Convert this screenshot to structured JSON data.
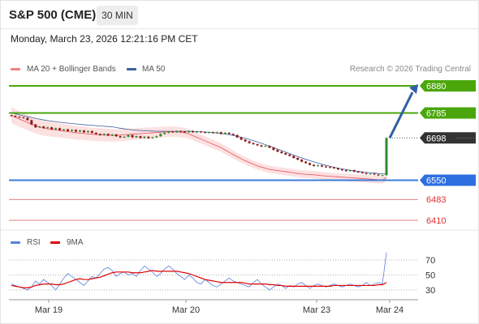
{
  "header": {
    "symbol": "S&P 500 (CME)",
    "timeframe": "30 MIN"
  },
  "datetime": "Monday, March 23, 2026 12:21:16 PM CET",
  "legend": {
    "items": [
      {
        "label": "MA 20 + Bollinger Bands",
        "color": "#f08080"
      },
      {
        "label": "MA 50",
        "color": "#3c5f9c"
      }
    ],
    "copyright": "Research © 2026 Trading Central"
  },
  "rsi_legend": {
    "items": [
      {
        "label": "RSI",
        "color": "#5b7fdb"
      },
      {
        "label": "9MA",
        "color": "#e00000"
      }
    ]
  },
  "chart_data": {
    "type": "candlestick",
    "x_labels": [
      "Mar 19",
      "Mar 20",
      "Mar 23",
      "Mar 24"
    ],
    "y_range": [
      6380,
      6900
    ],
    "levels": [
      {
        "value": 6880,
        "label": "6880",
        "color": "#4aa60a",
        "style": "solid",
        "tag_color": "#4aa60a"
      },
      {
        "value": 6785,
        "label": "6785",
        "color": "#4aa60a",
        "style": "solid",
        "tag_color": "#4aa60a"
      },
      {
        "value": 6698,
        "label": "6698",
        "color": "#333333",
        "style": "dotted",
        "tag_color": "#333333"
      },
      {
        "value": 6550,
        "label": "6550",
        "color": "#3c7ddb",
        "style": "solid",
        "tag_color": "#2d6fe0"
      },
      {
        "value": 6483,
        "label": "6483",
        "color": "#e05050",
        "style": "thin",
        "tag_color": null
      },
      {
        "value": 6410,
        "label": "6410",
        "color": "#e05050",
        "style": "thin",
        "tag_color": null
      }
    ],
    "price_series": [
      6775,
      6772,
      6770,
      6768,
      6760,
      6745,
      6735,
      6738,
      6733,
      6735,
      6728,
      6732,
      6725,
      6728,
      6722,
      6726,
      6720,
      6724,
      6718,
      6722,
      6716,
      6712,
      6708,
      6712,
      6706,
      6710,
      6704,
      6700,
      6702,
      6708,
      6700,
      6704,
      6698,
      6702,
      6697,
      6700,
      6704,
      6712,
      6716,
      6720,
      6718,
      6722,
      6720,
      6718,
      6722,
      6718,
      6720,
      6718,
      6716,
      6718,
      6715,
      6718,
      6712,
      6716,
      6712,
      6708,
      6700,
      6692,
      6686,
      6680,
      6676,
      6672,
      6668,
      6670,
      6664,
      6656,
      6650,
      6645,
      6640,
      6635,
      6628,
      6622,
      6615,
      6610,
      6604,
      6600,
      6602,
      6598,
      6596,
      6595,
      6592,
      6588,
      6585,
      6582,
      6585,
      6580,
      6578,
      6575,
      6572,
      6573,
      6570,
      6567,
      6568,
      6698
    ],
    "ma20": [
      6778,
      6770,
      6764,
      6758,
      6752,
      6746,
      6740,
      6736,
      6732,
      6730,
      6728,
      6726,
      6724,
      6722,
      6720,
      6718,
      6716,
      6715,
      6714,
      6712,
      6711,
      6710,
      6709,
      6708,
      6708,
      6707,
      6707,
      6708,
      6709,
      6710,
      6711,
      6712,
      6713,
      6714,
      6715,
      6716,
      6717,
      6718,
      6719,
      6720,
      6720,
      6719,
      6718,
      6716,
      6712,
      6706,
      6700,
      6694,
      6688,
      6682,
      6676,
      6670,
      6664,
      6656,
      6648,
      6640,
      6632,
      6625,
      6618,
      6612,
      6606,
      6600,
      6596,
      6592,
      6588,
      6586,
      6584,
      6582,
      6580,
      6578,
      6576,
      6574,
      6572,
      6571,
      6570,
      6569,
      6568,
      6566,
      6565,
      6564,
      6563,
      6562,
      6561,
      6560,
      6559,
      6558,
      6557,
      6556,
      6555,
      6554,
      6553,
      6552,
      6551,
      6560
    ],
    "rsi": [
      38,
      36,
      34,
      32,
      30,
      34,
      42,
      38,
      44,
      40,
      36,
      30,
      38,
      46,
      52,
      48,
      44,
      40,
      36,
      42,
      48,
      46,
      52,
      58,
      60,
      56,
      48,
      52,
      54,
      50,
      52,
      48,
      56,
      62,
      58,
      54,
      48,
      52,
      58,
      62,
      58,
      52,
      48,
      44,
      50,
      46,
      40,
      38,
      44,
      40,
      36,
      34,
      38,
      42,
      46,
      42,
      40,
      38,
      36,
      34,
      40,
      44,
      38,
      34,
      30,
      34,
      38,
      36,
      32,
      36,
      34,
      38,
      40,
      36,
      32,
      36,
      38,
      36,
      34,
      36,
      38,
      36,
      34,
      36,
      38,
      36,
      34,
      36,
      40,
      36,
      38,
      40,
      38,
      80
    ],
    "rsi_ma": [
      36,
      35,
      34,
      33,
      33,
      34,
      36,
      37,
      38,
      38,
      38,
      37,
      37,
      38,
      40,
      42,
      44,
      45,
      44,
      44,
      45,
      46,
      47,
      49,
      51,
      53,
      54,
      54,
      54,
      54,
      53,
      53,
      53,
      54,
      55,
      56,
      55,
      55,
      55,
      55,
      55,
      55,
      54,
      53,
      52,
      50,
      48,
      46,
      44,
      43,
      42,
      41,
      40,
      40,
      40,
      40,
      40,
      40,
      39,
      38,
      38,
      38,
      38,
      38,
      37,
      37,
      36,
      36,
      35,
      35,
      35,
      35,
      35,
      35,
      35,
      35,
      35,
      35,
      35,
      35,
      36,
      36,
      36,
      36,
      36,
      36,
      36,
      36,
      36,
      36,
      36,
      37,
      37,
      40
    ],
    "rsi_levels": [
      70,
      50,
      30
    ],
    "forecast_arrow": {
      "from": 6698,
      "to": 6880
    }
  }
}
